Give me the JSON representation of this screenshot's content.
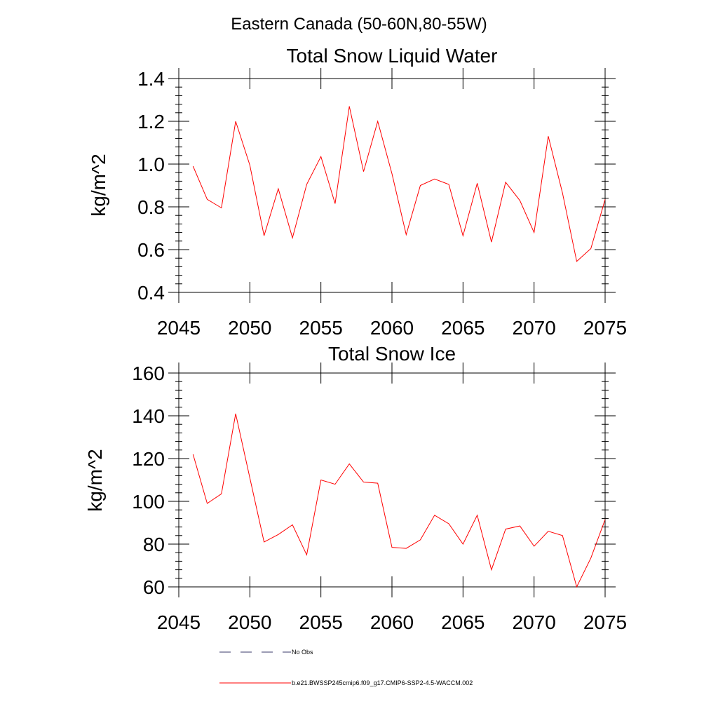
{
  "suptitle": "Eastern Canada (50-60N,80-55W)",
  "legend": {
    "obs_label": "No Obs",
    "model_label": "b.e21.BWSSP245cmip6.f09_g17.CMIP6-SSP2-4.5-WACCM.002",
    "obs_color": "#3a3a6a",
    "model_color": "#ff0000"
  },
  "chart_data": [
    {
      "type": "line",
      "title": "Total Snow Liquid Water",
      "ylabel": "kg/m^2",
      "xlabel": "",
      "xlim": [
        2045,
        2075
      ],
      "ylim": [
        0.4,
        1.4
      ],
      "x_ticks": [
        "2045",
        "2050",
        "2055",
        "2060",
        "2065",
        "2070",
        "2075"
      ],
      "y_ticks": [
        "0.4",
        "0.6",
        "0.8",
        "1.0",
        "1.2",
        "1.4"
      ],
      "x_tick_values": [
        2045,
        2050,
        2055,
        2060,
        2065,
        2070,
        2075
      ],
      "y_tick_values": [
        0.4,
        0.6,
        0.8,
        1.0,
        1.2,
        1.4
      ],
      "y_minor_step": 0.04,
      "x": [
        2046,
        2047,
        2048,
        2049,
        2050,
        2051,
        2052,
        2053,
        2054,
        2055,
        2056,
        2057,
        2058,
        2059,
        2060,
        2061,
        2062,
        2063,
        2064,
        2065,
        2066,
        2067,
        2068,
        2069,
        2070,
        2071,
        2072,
        2073,
        2074,
        2075
      ],
      "series": [
        {
          "values": [
            0.99,
            0.835,
            0.795,
            1.2,
            0.995,
            0.665,
            0.885,
            0.655,
            0.905,
            1.035,
            0.815,
            1.27,
            0.965,
            1.2,
            0.955,
            0.67,
            0.9,
            0.93,
            0.905,
            0.665,
            0.91,
            0.635,
            0.915,
            0.83,
            0.68,
            1.13,
            0.865,
            0.545,
            0.605,
            0.835
          ]
        }
      ]
    },
    {
      "type": "line",
      "title": "Total Snow Ice",
      "ylabel": "kg/m^2",
      "xlabel": "",
      "xlim": [
        2045,
        2075
      ],
      "ylim": [
        60,
        160
      ],
      "x_ticks": [
        "2045",
        "2050",
        "2055",
        "2060",
        "2065",
        "2070",
        "2075"
      ],
      "y_ticks": [
        "60",
        "80",
        "100",
        "120",
        "140",
        "160"
      ],
      "x_tick_values": [
        2045,
        2050,
        2055,
        2060,
        2065,
        2070,
        2075
      ],
      "y_tick_values": [
        60,
        80,
        100,
        120,
        140,
        160
      ],
      "y_minor_step": 4,
      "x": [
        2046,
        2047,
        2048,
        2049,
        2050,
        2051,
        2052,
        2053,
        2054,
        2055,
        2056,
        2057,
        2058,
        2059,
        2060,
        2061,
        2062,
        2063,
        2064,
        2065,
        2066,
        2067,
        2068,
        2069,
        2070,
        2071,
        2072,
        2073,
        2074,
        2075
      ],
      "series": [
        {
          "values": [
            122,
            99,
            103.5,
            141,
            111,
            81,
            84.5,
            89,
            75,
            110,
            108,
            117.5,
            109,
            108.5,
            78.5,
            78,
            82,
            93.5,
            89.5,
            80,
            93.5,
            68,
            87,
            88.5,
            79,
            86,
            84,
            60,
            73.5,
            91.5
          ]
        }
      ]
    }
  ]
}
